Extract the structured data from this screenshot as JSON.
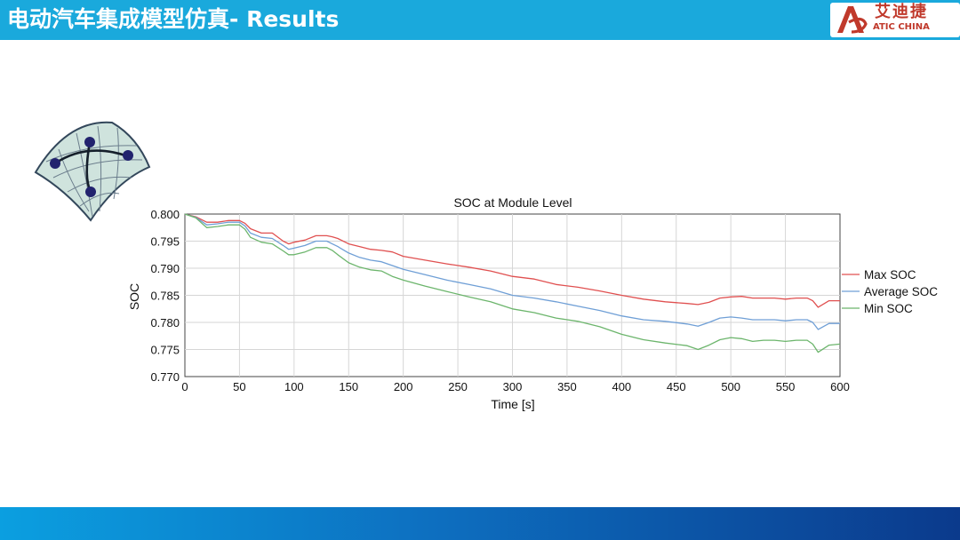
{
  "slide": {
    "title": "电动汽车集成模型仿真- Results"
  },
  "logo": {
    "cn_text": "艾迪捷",
    "en_text": "ATIC CHINA",
    "color": "#c0392b"
  },
  "theme": {
    "header_color": "#1aa9dc",
    "footer_colors": [
      "#0b9fe0",
      "#0b3a8c"
    ]
  },
  "decoration": {
    "icon": "surface-mesh-icon"
  },
  "chart_data": {
    "type": "line",
    "title": "SOC at Module Level",
    "xlabel": "Time [s]",
    "ylabel": "SOC",
    "xlim": [
      0,
      600
    ],
    "ylim": [
      0.77,
      0.8
    ],
    "xticks": [
      0,
      50,
      100,
      150,
      200,
      250,
      300,
      350,
      400,
      450,
      500,
      550,
      600
    ],
    "xtick_labels": [
      "0",
      "50",
      "100",
      "150",
      "200",
      "250",
      "300",
      "350",
      "400",
      "450",
      "500",
      "550",
      "600"
    ],
    "yticks": [
      0.77,
      0.775,
      0.78,
      0.785,
      0.79,
      0.795,
      0.8
    ],
    "ytick_labels": [
      "0.770",
      "0.775",
      "0.780",
      "0.785",
      "0.790",
      "0.795",
      "0.800"
    ],
    "grid": true,
    "legend_position": "right",
    "x": [
      0,
      10,
      20,
      30,
      40,
      50,
      55,
      60,
      70,
      80,
      90,
      95,
      100,
      110,
      120,
      130,
      135,
      140,
      150,
      160,
      170,
      180,
      190,
      200,
      220,
      240,
      260,
      280,
      300,
      320,
      340,
      360,
      380,
      400,
      420,
      440,
      460,
      470,
      480,
      490,
      500,
      510,
      520,
      530,
      540,
      550,
      560,
      570,
      575,
      580,
      590,
      600
    ],
    "series": [
      {
        "name": "Max SOC",
        "color": "#e05050",
        "values": [
          0.8,
          0.7995,
          0.7985,
          0.7985,
          0.7988,
          0.7988,
          0.7983,
          0.7973,
          0.7965,
          0.7965,
          0.795,
          0.7945,
          0.7948,
          0.7952,
          0.796,
          0.796,
          0.7958,
          0.7955,
          0.7945,
          0.794,
          0.7935,
          0.7933,
          0.793,
          0.7922,
          0.7915,
          0.7908,
          0.7902,
          0.7895,
          0.7885,
          0.788,
          0.787,
          0.7865,
          0.7858,
          0.785,
          0.7843,
          0.7838,
          0.7835,
          0.7833,
          0.7837,
          0.7845,
          0.7847,
          0.7848,
          0.7845,
          0.7845,
          0.7845,
          0.7843,
          0.7845,
          0.7845,
          0.784,
          0.7828,
          0.784,
          0.784
        ]
      },
      {
        "name": "Average SOC",
        "color": "#6f9fd6",
        "values": [
          0.8,
          0.7994,
          0.798,
          0.7982,
          0.7985,
          0.7985,
          0.7978,
          0.7965,
          0.7957,
          0.7955,
          0.7942,
          0.7935,
          0.7937,
          0.7942,
          0.795,
          0.795,
          0.7945,
          0.794,
          0.7928,
          0.792,
          0.7915,
          0.7912,
          0.7905,
          0.7898,
          0.7888,
          0.7878,
          0.787,
          0.7862,
          0.785,
          0.7845,
          0.7838,
          0.783,
          0.7822,
          0.7812,
          0.7805,
          0.7802,
          0.7797,
          0.7793,
          0.78,
          0.7808,
          0.781,
          0.7808,
          0.7805,
          0.7805,
          0.7805,
          0.7803,
          0.7805,
          0.7805,
          0.78,
          0.7787,
          0.7798,
          0.7798
        ]
      },
      {
        "name": "Min SOC",
        "color": "#6cb56c",
        "values": [
          0.8,
          0.7993,
          0.7975,
          0.7977,
          0.798,
          0.798,
          0.7972,
          0.7957,
          0.7948,
          0.7945,
          0.7932,
          0.7925,
          0.7925,
          0.793,
          0.7938,
          0.7938,
          0.7933,
          0.7925,
          0.791,
          0.7902,
          0.7897,
          0.7895,
          0.7885,
          0.7878,
          0.7867,
          0.7857,
          0.7847,
          0.7838,
          0.7825,
          0.7818,
          0.7808,
          0.7802,
          0.7792,
          0.7778,
          0.7768,
          0.7762,
          0.7757,
          0.775,
          0.7758,
          0.7768,
          0.7772,
          0.777,
          0.7765,
          0.7767,
          0.7767,
          0.7765,
          0.7767,
          0.7767,
          0.776,
          0.7745,
          0.7758,
          0.776
        ]
      }
    ]
  }
}
